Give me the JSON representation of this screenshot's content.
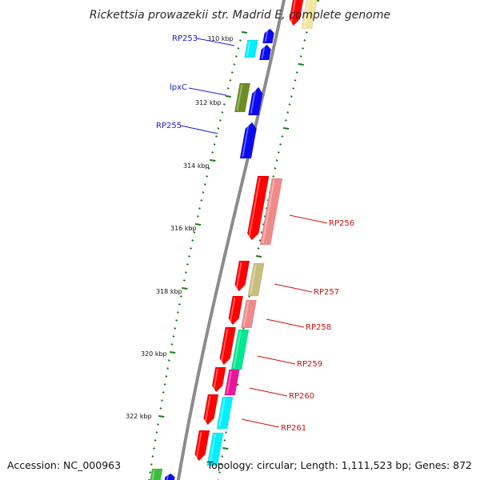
{
  "title": "Rickettsia prowazekii str. Madrid E, complete genome",
  "footer": {
    "accession": "Accession: NC_000963",
    "summary": "Topology: circular; Length: 1,111,523 bp; Genes: 872"
  },
  "scale_labels": [
    "310 kbp",
    "312 kbp",
    "314 kbp",
    "316 kbp",
    "318 kbp",
    "320 kbp",
    "322 kbp"
  ],
  "gene_labels": {
    "left": [
      "RP253",
      "lpxC",
      "RP255"
    ],
    "right": [
      "RP256",
      "RP257",
      "RP258",
      "RP259",
      "RP260",
      "RP261"
    ]
  },
  "colors": {
    "backbone": "#8c8c8c",
    "scale_ticks": "#1e7a1e",
    "label_blue": "#1a1ad6",
    "label_red": "#cc1111",
    "gene_red": "#ff0000",
    "gene_salmon": "#f08a8a",
    "gene_blue": "#0a0af0",
    "gene_cyan": "#00f0ff",
    "gene_olive": "#6b8c24",
    "gene_khaki": "#c8be7c",
    "gene_spring": "#00e890",
    "gene_magenta": "#ee1499",
    "gene_green": "#3cbe3c",
    "gene_paleyellow": "#f2e6a0"
  }
}
